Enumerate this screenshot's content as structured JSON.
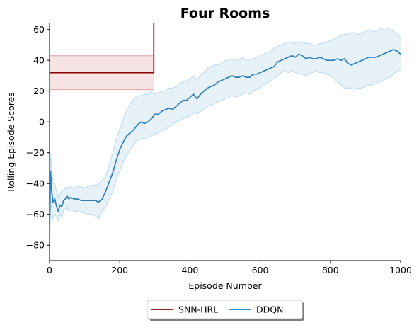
{
  "chart_data": {
    "type": "line",
    "title": "Four Rooms",
    "xlabel": "Episode Number",
    "ylabel": "Rolling Episode Scores",
    "xlim": [
      0,
      1000
    ],
    "ylim": [
      -90,
      64
    ],
    "xticks": [
      0,
      200,
      400,
      600,
      800,
      1000
    ],
    "xtick_labels": [
      "0",
      "200",
      "400",
      "600",
      "800",
      "1000"
    ],
    "yticks": [
      -80,
      -60,
      -40,
      -20,
      0,
      20,
      40,
      60
    ],
    "ytick_labels": [
      "−80",
      "−60",
      "−40",
      "−20",
      "0",
      "20",
      "40",
      "60"
    ],
    "grid": false,
    "legend_position": "bottom-center",
    "series": [
      {
        "name": "SNN-HRL",
        "color": "#8b0000",
        "band_color": "#b22222",
        "x": [
          0,
          297,
          297
        ],
        "y": [
          32,
          32,
          64
        ],
        "band": {
          "x": [
            0,
            297
          ],
          "lower": [
            21,
            21
          ],
          "upper": [
            43,
            43
          ]
        }
      },
      {
        "name": "DDQN",
        "color": "#2e7fb8",
        "band_color": "#6baed6",
        "x": [
          0,
          3,
          6,
          10,
          15,
          20,
          25,
          30,
          35,
          40,
          45,
          50,
          55,
          60,
          70,
          80,
          90,
          100,
          110,
          120,
          130,
          140,
          150,
          160,
          170,
          180,
          190,
          200,
          210,
          220,
          230,
          240,
          250,
          260,
          270,
          280,
          290,
          300,
          310,
          320,
          330,
          340,
          350,
          360,
          370,
          380,
          390,
          400,
          410,
          420,
          430,
          440,
          450,
          460,
          470,
          480,
          490,
          500,
          510,
          520,
          530,
          540,
          550,
          560,
          570,
          580,
          590,
          600,
          610,
          620,
          630,
          640,
          650,
          660,
          670,
          680,
          690,
          700,
          710,
          720,
          730,
          740,
          750,
          760,
          770,
          780,
          790,
          800,
          810,
          820,
          830,
          840,
          850,
          860,
          870,
          880,
          890,
          900,
          910,
          920,
          930,
          940,
          950,
          960,
          970,
          980,
          990,
          1000
        ],
        "y": [
          -72,
          -32,
          -45,
          -52,
          -50,
          -55,
          -58,
          -54,
          -55,
          -51,
          -50,
          -48,
          -50,
          -49,
          -50,
          -50,
          -51,
          -51,
          -51,
          -51,
          -51,
          -52,
          -50,
          -45,
          -39,
          -33,
          -25,
          -18,
          -13,
          -9,
          -7,
          -5,
          -2,
          0,
          -1,
          0,
          2,
          5,
          5,
          7,
          8,
          9,
          8,
          10,
          12,
          14,
          14,
          16,
          18,
          15,
          18,
          20,
          22,
          23,
          24,
          26,
          27,
          28,
          29,
          30,
          29,
          29,
          30,
          29,
          29,
          31,
          31,
          32,
          33,
          34,
          35,
          36,
          39,
          40,
          41,
          42,
          43,
          42,
          44,
          43,
          41,
          42,
          41,
          41,
          42,
          41,
          40,
          40,
          40,
          41,
          40,
          41,
          38,
          37,
          38,
          39,
          40,
          41,
          42,
          42,
          42,
          43,
          44,
          45,
          46,
          47,
          46,
          44
        ],
        "band": {
          "lower": [
            -90,
            -50,
            -58,
            -63,
            -60,
            -62,
            -64,
            -60,
            -62,
            -57,
            -57,
            -55,
            -58,
            -57,
            -58,
            -58,
            -59,
            -59,
            -60,
            -60,
            -61,
            -63,
            -58,
            -55,
            -50,
            -45,
            -38,
            -32,
            -26,
            -22,
            -18,
            -15,
            -12,
            -11,
            -11,
            -10,
            -9,
            -8,
            -7,
            -6,
            -5,
            -3,
            -2,
            0,
            1,
            2,
            3,
            4,
            6,
            5,
            7,
            8,
            10,
            11,
            12,
            13,
            14,
            15,
            16,
            17,
            16,
            17,
            18,
            19,
            18,
            20,
            21,
            22,
            24,
            25,
            27,
            28,
            30,
            32,
            33,
            32,
            33,
            32,
            31,
            31,
            30,
            31,
            32,
            33,
            32,
            32,
            31,
            30,
            28,
            26,
            24,
            22,
            22,
            22,
            21,
            22,
            22,
            23,
            24,
            24,
            25,
            26,
            27,
            28,
            29,
            31,
            33,
            34
          ],
          "upper": [
            -48,
            -20,
            -32,
            -38,
            -40,
            -45,
            -49,
            -46,
            -45,
            -44,
            -43,
            -42,
            -43,
            -42,
            -43,
            -42,
            -42,
            -43,
            -42,
            -41,
            -41,
            -40,
            -38,
            -35,
            -28,
            -20,
            -11,
            -5,
            2,
            8,
            12,
            15,
            17,
            17,
            18,
            18,
            20,
            18,
            19,
            20,
            20,
            22,
            22,
            23,
            25,
            26,
            27,
            28,
            30,
            27,
            30,
            32,
            35,
            36,
            37,
            37,
            38,
            40,
            40,
            41,
            40,
            40,
            42,
            40,
            40,
            41,
            42,
            43,
            44,
            45,
            46,
            48,
            49,
            50,
            51,
            52,
            52,
            51,
            52,
            52,
            51,
            51,
            50,
            50,
            51,
            51,
            52,
            53,
            54,
            55,
            56,
            57,
            57,
            58,
            58,
            57,
            58,
            59,
            60,
            59,
            59,
            60,
            61,
            61,
            60,
            59,
            57,
            55
          ]
        }
      }
    ]
  }
}
